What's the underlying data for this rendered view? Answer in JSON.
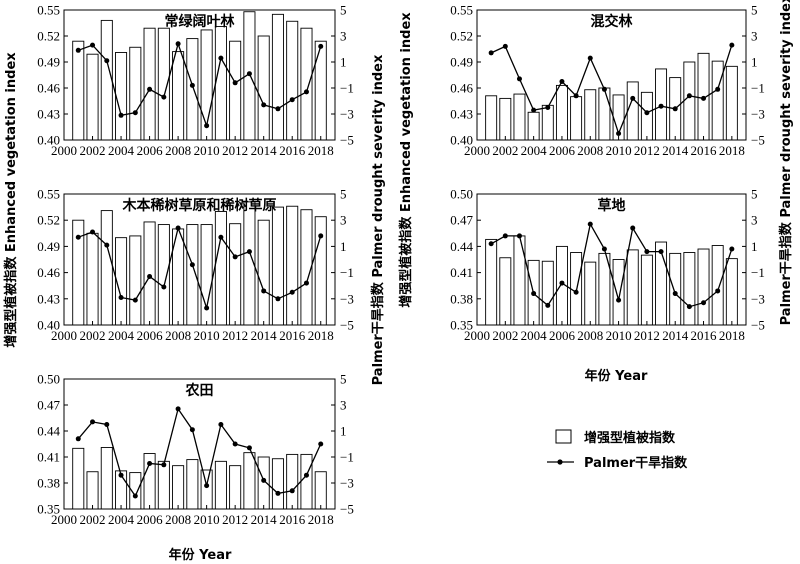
{
  "figure": {
    "ylabel_left": "增强型植被指数 Enhanced vegetation index",
    "ylabel_right": "Palmer干旱指数 Palmer drought severity index",
    "xlabel": "年份 Year",
    "legend": {
      "bar_label": "增强型植被指数",
      "line_label": "Palmer干旱指数"
    },
    "bar_color": "#ffffff",
    "line_color": "#000000"
  },
  "chart_data": [
    {
      "type": "bar+line",
      "title": "常绿阔叶林",
      "x": [
        2001,
        2002,
        2003,
        2004,
        2005,
        2006,
        2007,
        2008,
        2009,
        2010,
        2011,
        2012,
        2013,
        2014,
        2015,
        2016,
        2017,
        2018
      ],
      "series": [
        {
          "name": "增强型植被指数",
          "axis": "left",
          "values": [
            0.514,
            0.499,
            0.538,
            0.501,
            0.507,
            0.529,
            0.529,
            0.502,
            0.517,
            0.527,
            0.531,
            0.514,
            0.548,
            0.52,
            0.545,
            0.537,
            0.529,
            0.514
          ]
        },
        {
          "name": "Palmer干旱指数",
          "axis": "right",
          "values": [
            1.9,
            2.3,
            1.1,
            -3.1,
            -2.9,
            -1.1,
            -1.7,
            2.4,
            -0.8,
            -3.9,
            1.3,
            -0.6,
            0.1,
            -2.3,
            -2.6,
            -1.9,
            -1.3,
            2.2
          ]
        }
      ],
      "ylim_left": [
        0.4,
        0.55
      ],
      "yticks_left": [
        "0.40",
        "0.43",
        "0.46",
        "0.49",
        "0.52",
        "0.55"
      ],
      "ylim_right": [
        -5,
        5
      ],
      "yticks_right": [
        "-5",
        "-3",
        "-1",
        "1",
        "3",
        "5"
      ],
      "xlim": [
        2000,
        2019
      ],
      "xticks": [
        "2000",
        "2002",
        "2004",
        "2006",
        "2008",
        "2010",
        "2012",
        "2014",
        "2016",
        "2018"
      ]
    },
    {
      "type": "bar+line",
      "title": "混交林",
      "x": [
        2001,
        2002,
        2003,
        2004,
        2005,
        2006,
        2007,
        2008,
        2009,
        2010,
        2011,
        2012,
        2013,
        2014,
        2015,
        2016,
        2017,
        2018
      ],
      "series": [
        {
          "name": "增强型植被指数",
          "axis": "left",
          "values": [
            0.451,
            0.448,
            0.453,
            0.432,
            0.44,
            0.463,
            0.45,
            0.458,
            0.46,
            0.452,
            0.467,
            0.455,
            0.482,
            0.472,
            0.49,
            0.5,
            0.491,
            0.485
          ]
        },
        {
          "name": "Palmer干旱指数",
          "axis": "right",
          "values": [
            1.7,
            2.2,
            -0.3,
            -2.7,
            -2.5,
            -0.5,
            -1.6,
            1.3,
            -1.1,
            -4.5,
            -1.8,
            -2.9,
            -2.4,
            -2.6,
            -1.6,
            -1.8,
            -1.1,
            2.3
          ]
        }
      ],
      "ylim_left": [
        0.4,
        0.55
      ],
      "yticks_left": [
        "0.40",
        "0.43",
        "0.46",
        "0.49",
        "0.52",
        "0.55"
      ],
      "ylim_right": [
        -5,
        5
      ],
      "yticks_right": [
        "-5",
        "-3",
        "-1",
        "1",
        "3",
        "5"
      ],
      "xlim": [
        2000,
        2019
      ],
      "xticks": [
        "2000",
        "2002",
        "2004",
        "2006",
        "2008",
        "2010",
        "2012",
        "2014",
        "2016",
        "2018"
      ]
    },
    {
      "type": "bar+line",
      "title": "木本稀树草原和稀树草原",
      "x": [
        2001,
        2002,
        2003,
        2004,
        2005,
        2006,
        2007,
        2008,
        2009,
        2010,
        2011,
        2012,
        2013,
        2014,
        2015,
        2016,
        2017,
        2018
      ],
      "series": [
        {
          "name": "增强型植被指数",
          "axis": "left",
          "values": [
            0.52,
            0.505,
            0.531,
            0.5,
            0.502,
            0.518,
            0.515,
            0.51,
            0.515,
            0.515,
            0.53,
            0.516,
            0.541,
            0.52,
            0.535,
            0.536,
            0.532,
            0.524
          ]
        },
        {
          "name": "Palmer干旱指数",
          "axis": "right",
          "values": [
            1.7,
            2.1,
            1.1,
            -2.9,
            -3.1,
            -1.3,
            -2.1,
            2.4,
            -0.4,
            -3.7,
            1.7,
            0.2,
            0.6,
            -2.4,
            -3.0,
            -2.5,
            -1.8,
            1.8
          ]
        }
      ],
      "ylim_left": [
        0.4,
        0.55
      ],
      "yticks_left": [
        "0.40",
        "0.43",
        "0.46",
        "0.49",
        "0.52",
        "0.55"
      ],
      "ylim_right": [
        -5,
        5
      ],
      "yticks_right": [
        "-5",
        "-3",
        "-1",
        "1",
        "3",
        "5"
      ],
      "xlim": [
        2000,
        2019
      ],
      "xticks": [
        "2000",
        "2002",
        "2004",
        "2006",
        "2008",
        "2010",
        "2012",
        "2014",
        "2016",
        "2018"
      ]
    },
    {
      "type": "bar+line",
      "title": "草地",
      "x": [
        2001,
        2002,
        2003,
        2004,
        2005,
        2006,
        2007,
        2008,
        2009,
        2010,
        2011,
        2012,
        2013,
        2014,
        2015,
        2016,
        2017,
        2018
      ],
      "series": [
        {
          "name": "增强型植被指数",
          "axis": "left",
          "values": [
            0.448,
            0.427,
            0.452,
            0.424,
            0.423,
            0.44,
            0.433,
            0.422,
            0.432,
            0.425,
            0.436,
            0.43,
            0.445,
            0.432,
            0.433,
            0.437,
            0.441,
            0.426
          ]
        },
        {
          "name": "Palmer干旱指数",
          "axis": "right",
          "values": [
            1.2,
            1.8,
            1.8,
            -2.6,
            -3.5,
            -1.8,
            -2.5,
            2.7,
            0.8,
            -3.1,
            2.4,
            0.6,
            0.6,
            -2.6,
            -3.6,
            -3.3,
            -2.4,
            0.8
          ]
        }
      ],
      "ylim_left": [
        0.35,
        0.5
      ],
      "yticks_left": [
        "0.35",
        "0.38",
        "0.41",
        "0.44",
        "0.47",
        "0.50"
      ],
      "ylim_right": [
        -5,
        5
      ],
      "yticks_right": [
        "-5",
        "-3",
        "-1",
        "1",
        "3",
        "5"
      ],
      "xlim": [
        2000,
        2019
      ],
      "xticks": [
        "2000",
        "2002",
        "2004",
        "2006",
        "2008",
        "2010",
        "2012",
        "2014",
        "2016",
        "2018"
      ]
    },
    {
      "type": "bar+line",
      "title": "农田",
      "x": [
        2001,
        2002,
        2003,
        2004,
        2005,
        2006,
        2007,
        2008,
        2009,
        2010,
        2011,
        2012,
        2013,
        2014,
        2015,
        2016,
        2017,
        2018
      ],
      "series": [
        {
          "name": "增强型植被指数",
          "axis": "left",
          "values": [
            0.42,
            0.393,
            0.421,
            0.394,
            0.392,
            0.414,
            0.405,
            0.4,
            0.407,
            0.395,
            0.405,
            0.4,
            0.415,
            0.41,
            0.408,
            0.413,
            0.413,
            0.393
          ]
        },
        {
          "name": "Palmer干旱指数",
          "axis": "right",
          "values": [
            0.4,
            1.7,
            1.5,
            -2.4,
            -4.0,
            -1.5,
            -1.6,
            2.7,
            1.1,
            -3.2,
            1.5,
            0.0,
            -0.3,
            -2.8,
            -3.8,
            -3.6,
            -2.4,
            0.0
          ]
        }
      ],
      "ylim_left": [
        0.35,
        0.5
      ],
      "yticks_left": [
        "0.35",
        "0.38",
        "0.41",
        "0.44",
        "0.47",
        "0.50"
      ],
      "ylim_right": [
        -5,
        5
      ],
      "yticks_right": [
        "-5",
        "-3",
        "-1",
        "1",
        "3",
        "5"
      ],
      "xlim": [
        2000,
        2019
      ],
      "xticks": [
        "2000",
        "2002",
        "2004",
        "2006",
        "2008",
        "2010",
        "2012",
        "2014",
        "2016",
        "2018"
      ]
    }
  ]
}
